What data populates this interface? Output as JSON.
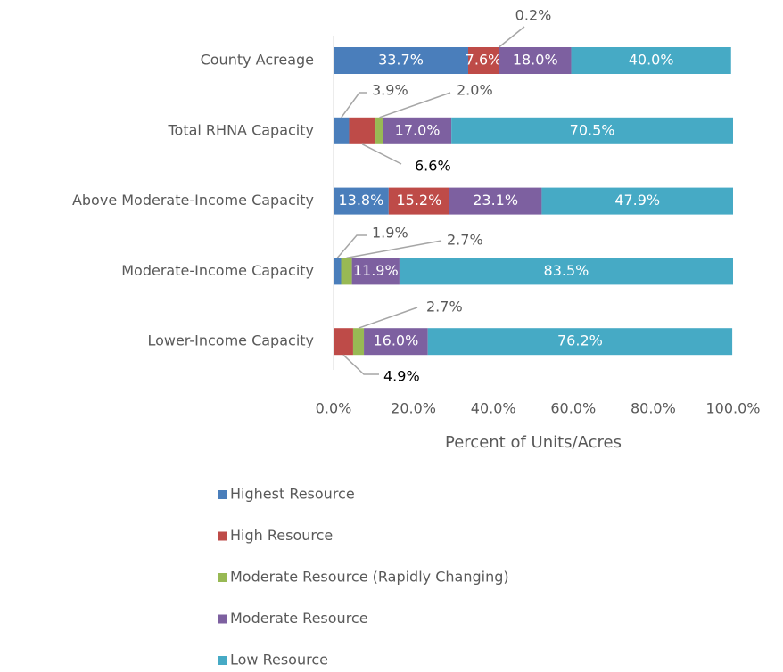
{
  "chart_data": {
    "type": "stacked-bar-horizontal",
    "x_axis_label": "Percent of Units/Acres",
    "categories": [
      "County Acreage",
      "Total RHNA Capacity",
      "Above Moderate-Income Capacity",
      "Moderate-Income Capacity",
      "Lower-Income Capacity"
    ],
    "xlim": [
      0,
      100
    ],
    "xticks": [
      {
        "value": 0,
        "label": "0.0%"
      },
      {
        "value": 20,
        "label": "20.0%"
      },
      {
        "value": 40,
        "label": "40.0%"
      },
      {
        "value": 60,
        "label": "60.0%"
      },
      {
        "value": 80,
        "label": "80.0%"
      },
      {
        "value": 100,
        "label": "100.0%"
      }
    ],
    "grid": false,
    "legend": "bottom",
    "series": [
      {
        "name": "Highest Resource",
        "color": "#4a7ebb",
        "values": [
          33.7,
          3.9,
          13.8,
          1.9,
          null
        ],
        "value_labels": [
          "33.7%",
          "3.9%",
          "13.8%",
          "1.9%",
          null
        ]
      },
      {
        "name": "High Resource",
        "color": "#be4b48",
        "values": [
          7.6,
          6.6,
          15.2,
          null,
          4.9
        ],
        "value_labels": [
          "7.6%",
          "6.6%",
          "15.2%",
          null,
          "4.9%"
        ]
      },
      {
        "name": "Moderate Resource (Rapidly Changing)",
        "color": "#98b954",
        "values": [
          0.2,
          2.0,
          null,
          2.7,
          2.7
        ],
        "value_labels": [
          "0.2%",
          "2.0%",
          null,
          "2.7%",
          "2.7%"
        ]
      },
      {
        "name": "Moderate Resource",
        "color": "#7d60a0",
        "values": [
          18.0,
          17.0,
          23.1,
          11.9,
          16.0
        ],
        "value_labels": [
          "18.0%",
          "17.0%",
          "23.1%",
          "11.9%",
          "16.0%"
        ]
      },
      {
        "name": "Low Resource",
        "color": "#46aac5",
        "values": [
          40.0,
          70.5,
          47.9,
          83.5,
          76.2
        ],
        "value_labels": [
          "40.0%",
          "70.5%",
          "47.9%",
          "83.5%",
          "76.2%"
        ]
      }
    ]
  }
}
